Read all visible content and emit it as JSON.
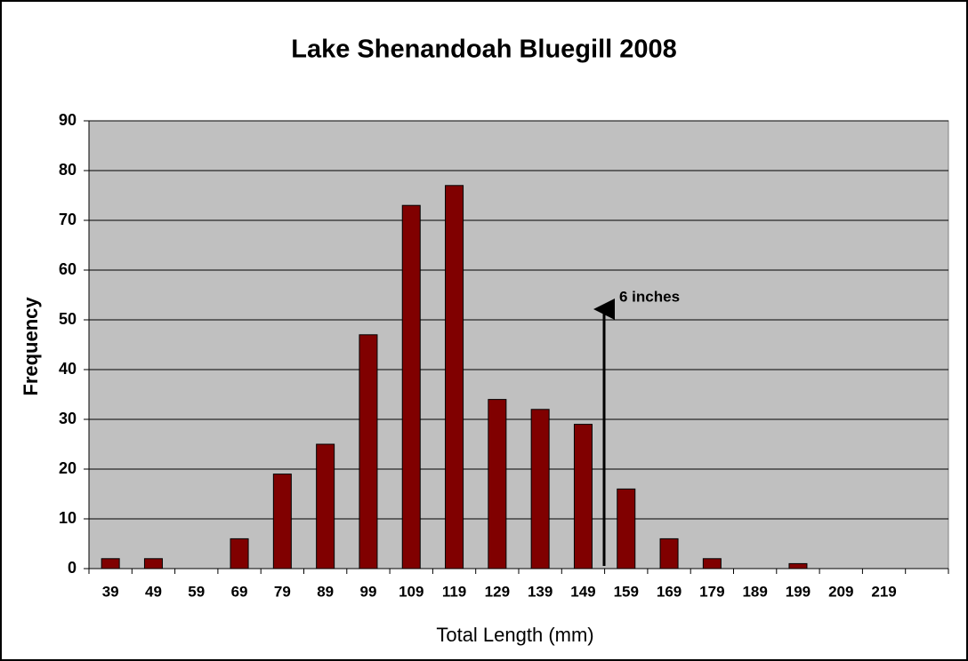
{
  "chart_data": {
    "type": "bar",
    "title": "Lake Shenandoah Bluegill 2008",
    "x_label": "Total Length (mm)",
    "y_label": "Frequency",
    "categories": [
      "39",
      "49",
      "59",
      "69",
      "79",
      "89",
      "99",
      "109",
      "119",
      "129",
      "139",
      "149",
      "159",
      "169",
      "179",
      "189",
      "199",
      "209",
      "219",
      null
    ],
    "values": [
      2,
      2,
      0,
      6,
      19,
      25,
      47,
      73,
      77,
      34,
      32,
      29,
      16,
      6,
      2,
      0,
      1,
      0,
      0,
      0
    ],
    "color": "#800000",
    "ylim": [
      0,
      90
    ],
    "yticks": [
      0,
      10,
      20,
      30,
      40,
      50,
      60,
      70,
      80,
      90
    ],
    "grid": true,
    "annotations": [
      {
        "text": "6 inches"
      }
    ]
  }
}
